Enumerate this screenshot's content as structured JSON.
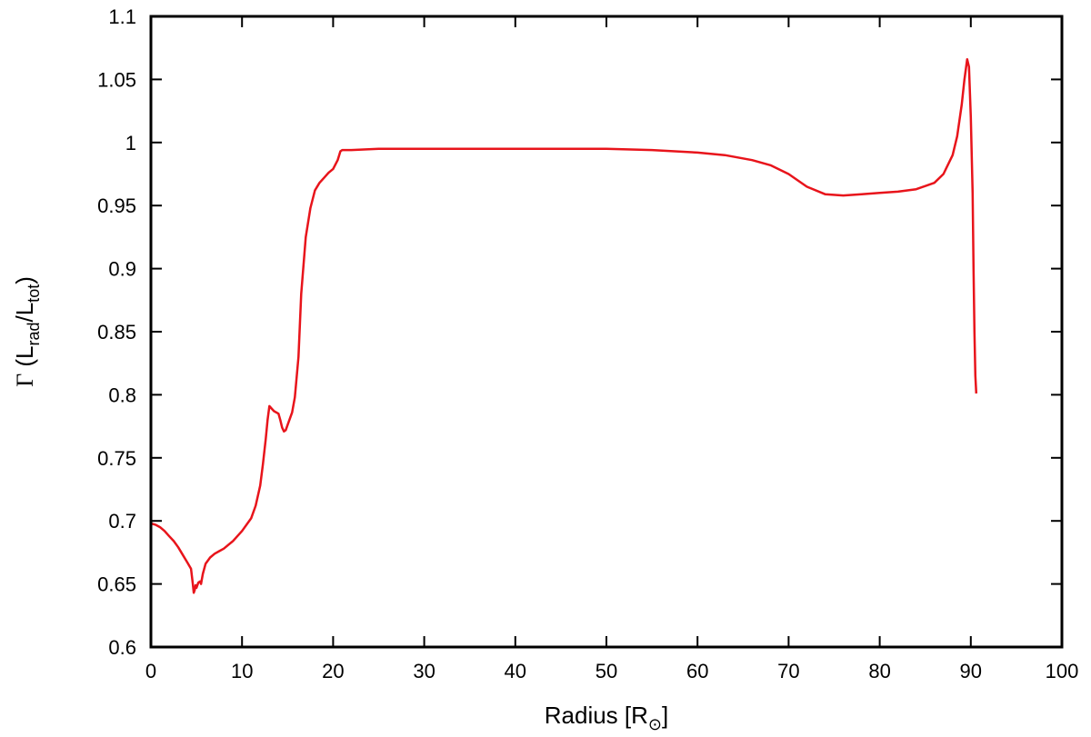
{
  "chart_data": {
    "type": "line",
    "xlabel": {
      "main": "Radius [R",
      "sub": "⊙",
      "close": "]"
    },
    "ylabel": {
      "symbol": "Γ",
      "open": " (L",
      "sub1": "rad",
      "mid": "/L",
      "sub2": "tot",
      "close": ")"
    },
    "xlim": [
      0,
      100
    ],
    "ylim": [
      0.6,
      1.1
    ],
    "x_ticks": [
      0,
      10,
      20,
      30,
      40,
      50,
      60,
      70,
      80,
      90,
      100
    ],
    "x_tick_labels": [
      "0",
      "10",
      "20",
      "30",
      "40",
      "50",
      "60",
      "70",
      "80",
      "90",
      "100"
    ],
    "y_ticks": [
      0.6,
      0.65,
      0.7,
      0.75,
      0.8,
      0.85,
      0.9,
      0.95,
      1.0,
      1.05,
      1.1
    ],
    "y_tick_labels": [
      "0.6",
      "0.65",
      "0.7",
      "0.75",
      "0.8",
      "0.85",
      "0.9",
      "0.95",
      "1",
      "1.05",
      "1.1"
    ],
    "grid": false,
    "legend": "none",
    "series": [
      {
        "color": "#e8141b",
        "x": [
          0.0,
          0.5,
          1.0,
          1.5,
          2.0,
          2.5,
          3.0,
          3.5,
          4.0,
          4.4,
          4.6,
          4.7,
          4.8,
          4.9,
          5.0,
          5.2,
          5.4,
          5.5,
          5.7,
          6.0,
          6.5,
          7.0,
          7.5,
          8.0,
          9.0,
          10.0,
          11.0,
          11.5,
          12.0,
          12.3,
          12.6,
          12.8,
          13.0,
          13.5,
          14.0,
          14.2,
          14.4,
          14.6,
          14.8,
          15.0,
          15.5,
          15.8,
          16.2,
          16.5,
          17.0,
          17.5,
          18.0,
          18.5,
          19.0,
          19.5,
          20.0,
          20.5,
          20.8,
          21.0,
          22.0,
          25.0,
          30.0,
          35.0,
          40.0,
          45.0,
          50.0,
          55.0,
          60.0,
          63.0,
          66.0,
          68.0,
          70.0,
          72.0,
          74.0,
          76.0,
          78.0,
          80.0,
          82.0,
          84.0,
          86.0,
          87.0,
          88.0,
          88.5,
          89.0,
          89.3,
          89.6,
          89.8,
          90.0,
          90.2,
          90.3,
          90.4,
          90.5,
          90.6
        ],
        "y": [
          0.698,
          0.697,
          0.695,
          0.692,
          0.688,
          0.684,
          0.679,
          0.673,
          0.667,
          0.662,
          0.65,
          0.643,
          0.645,
          0.649,
          0.647,
          0.651,
          0.652,
          0.65,
          0.658,
          0.666,
          0.671,
          0.674,
          0.676,
          0.678,
          0.684,
          0.692,
          0.702,
          0.712,
          0.728,
          0.745,
          0.765,
          0.78,
          0.791,
          0.787,
          0.785,
          0.78,
          0.774,
          0.771,
          0.772,
          0.776,
          0.786,
          0.798,
          0.83,
          0.88,
          0.925,
          0.948,
          0.962,
          0.968,
          0.972,
          0.976,
          0.979,
          0.986,
          0.993,
          0.994,
          0.994,
          0.995,
          0.995,
          0.995,
          0.995,
          0.995,
          0.995,
          0.994,
          0.992,
          0.99,
          0.986,
          0.982,
          0.975,
          0.965,
          0.959,
          0.958,
          0.959,
          0.96,
          0.961,
          0.963,
          0.968,
          0.975,
          0.99,
          1.005,
          1.03,
          1.05,
          1.066,
          1.06,
          1.02,
          0.96,
          0.9,
          0.85,
          0.815,
          0.801
        ]
      }
    ]
  }
}
